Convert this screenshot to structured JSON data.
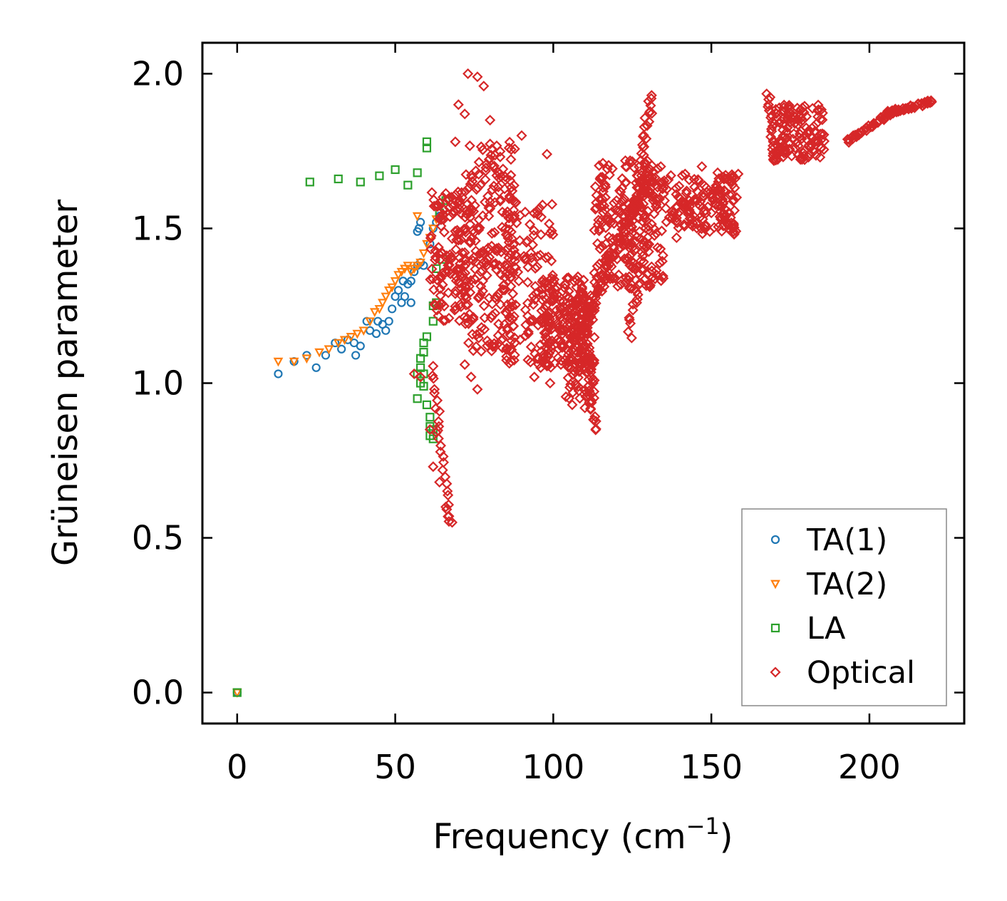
{
  "chart_data": {
    "type": "scatter",
    "title": "",
    "xlabel": "Frequency (cm",
    "xlabel_sup": "−1",
    "xlabel_end": ")",
    "ylabel": "Grüneisen parameter",
    "xlim": [
      -11,
      230
    ],
    "ylim": [
      -0.1,
      2.1
    ],
    "xticks": [
      "0",
      "50",
      "100",
      "150",
      "200"
    ],
    "xtick_values": [
      0,
      50,
      100,
      150,
      200
    ],
    "yticks": [
      "0.0",
      "0.5",
      "1.0",
      "1.5",
      "2.0"
    ],
    "ytick_values": [
      0,
      0.5,
      1.0,
      1.5,
      2.0
    ],
    "legend_position": "lower-right",
    "series": [
      {
        "name": "TA(1)",
        "marker": "circle",
        "color": "#1f77b4",
        "points": [
          [
            0,
            0
          ],
          [
            13,
            1.03
          ],
          [
            18,
            1.07
          ],
          [
            22,
            1.09
          ],
          [
            25,
            1.05
          ],
          [
            28,
            1.09
          ],
          [
            31,
            1.13
          ],
          [
            33,
            1.11
          ],
          [
            35,
            1.14
          ],
          [
            37,
            1.13
          ],
          [
            37.5,
            1.09
          ],
          [
            39,
            1.12
          ],
          [
            41,
            1.2
          ],
          [
            42,
            1.17
          ],
          [
            44,
            1.16
          ],
          [
            44.5,
            1.2
          ],
          [
            46,
            1.19
          ],
          [
            47,
            1.17
          ],
          [
            48,
            1.2
          ],
          [
            49,
            1.24
          ],
          [
            50,
            1.28
          ],
          [
            51,
            1.3
          ],
          [
            52,
            1.26
          ],
          [
            52.5,
            1.33
          ],
          [
            53,
            1.28
          ],
          [
            54,
            1.32
          ],
          [
            55,
            1.26
          ],
          [
            55,
            1.33
          ],
          [
            56,
            1.36
          ],
          [
            57,
            1.38
          ],
          [
            57,
            1.49
          ],
          [
            57.5,
            1.5
          ],
          [
            58,
            1.52
          ],
          [
            58,
            1.39
          ],
          [
            59,
            1.38
          ],
          [
            61,
            1.45
          ],
          [
            62,
            1.5
          ],
          [
            63,
            1.52
          ],
          [
            64,
            1.54
          ]
        ]
      },
      {
        "name": "TA(2)",
        "marker": "triangle-down",
        "color": "#ff7f0e",
        "points": [
          [
            0,
            0
          ],
          [
            13,
            1.07
          ],
          [
            18,
            1.07
          ],
          [
            22,
            1.08
          ],
          [
            26,
            1.1
          ],
          [
            29,
            1.11
          ],
          [
            32,
            1.13
          ],
          [
            34,
            1.14
          ],
          [
            36,
            1.15
          ],
          [
            38,
            1.16
          ],
          [
            40,
            1.17
          ],
          [
            42,
            1.2
          ],
          [
            43.5,
            1.23
          ],
          [
            45,
            1.24
          ],
          [
            46,
            1.26
          ],
          [
            47,
            1.28
          ],
          [
            48,
            1.3
          ],
          [
            49,
            1.31
          ],
          [
            50,
            1.33
          ],
          [
            51,
            1.35
          ],
          [
            52,
            1.36
          ],
          [
            53,
            1.37
          ],
          [
            54,
            1.38
          ],
          [
            55,
            1.36
          ],
          [
            56,
            1.37
          ],
          [
            57,
            1.38
          ],
          [
            58,
            1.39
          ],
          [
            59,
            1.42
          ],
          [
            60,
            1.45
          ],
          [
            61,
            1.47
          ],
          [
            62,
            1.5
          ],
          [
            63,
            1.53
          ],
          [
            57,
            1.54
          ]
        ]
      },
      {
        "name": "LA",
        "marker": "square",
        "color": "#2ca02c",
        "points": [
          [
            0,
            0
          ],
          [
            23,
            1.65
          ],
          [
            32,
            1.66
          ],
          [
            39,
            1.65
          ],
          [
            45,
            1.67
          ],
          [
            50,
            1.69
          ],
          [
            54,
            1.64
          ],
          [
            57,
            1.68
          ],
          [
            60,
            1.78
          ],
          [
            60,
            1.76
          ],
          [
            64,
            1.55
          ],
          [
            66,
            1.59
          ],
          [
            65,
            1.4
          ],
          [
            63,
            1.37
          ],
          [
            62,
            1.25
          ],
          [
            63,
            1.26
          ],
          [
            62,
            1.2
          ],
          [
            60,
            1.15
          ],
          [
            59,
            1.13
          ],
          [
            59,
            1.1
          ],
          [
            58,
            1.08
          ],
          [
            58,
            1.05
          ],
          [
            59,
            1.03
          ],
          [
            57,
            1.03
          ],
          [
            58,
            1.0
          ],
          [
            59,
            0.99
          ],
          [
            57,
            0.95
          ],
          [
            60,
            0.93
          ],
          [
            61,
            0.89
          ],
          [
            61,
            0.86
          ],
          [
            62,
            0.85
          ],
          [
            61,
            0.83
          ],
          [
            62,
            0.82
          ]
        ]
      },
      {
        "name": "Optical",
        "marker": "diamond",
        "color": "#d62728",
        "points": []
      }
    ]
  }
}
